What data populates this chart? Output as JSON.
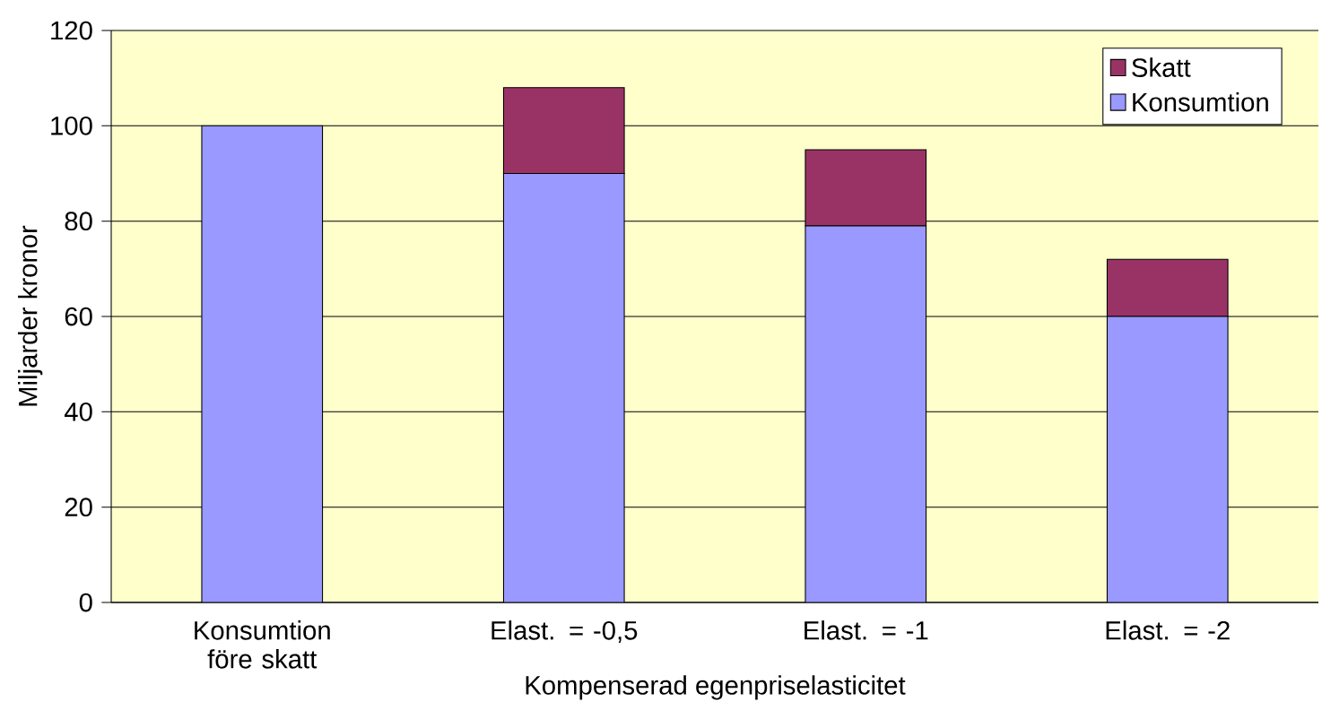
{
  "chart_data": {
    "type": "bar",
    "stacked": true,
    "xlabel": "Kompenserad egenpriselasticitet",
    "ylabel": "Miljarder kronor",
    "categories": [
      "Konsumtion före skatt",
      "Elast. = -0,5",
      "Elast. = -1",
      "Elast. = -2"
    ],
    "series": [
      {
        "name": "Konsumtion",
        "color": "#9999ff",
        "values": [
          100,
          90,
          79,
          60
        ]
      },
      {
        "name": "Skatt",
        "color": "#993366",
        "values": [
          0,
          18,
          16,
          12
        ]
      }
    ],
    "ylim": [
      0,
      120
    ],
    "yticks": [
      0,
      20,
      40,
      60,
      80,
      100,
      120
    ],
    "grid": "y",
    "legend": "top right"
  }
}
